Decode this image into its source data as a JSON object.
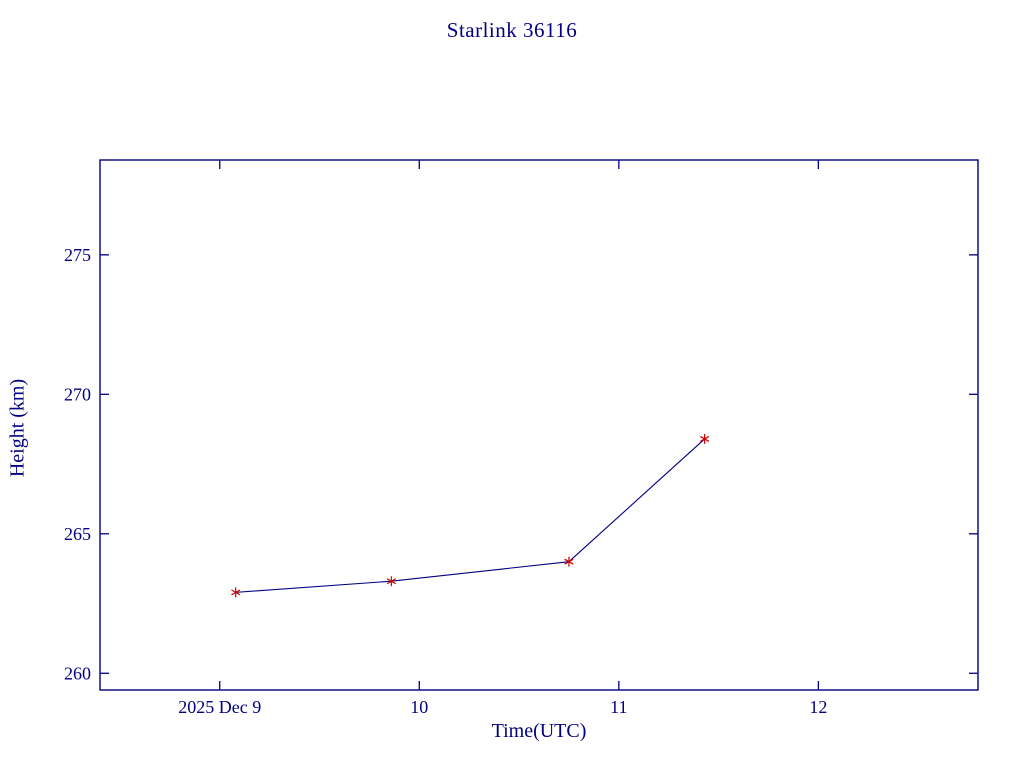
{
  "chart_data": {
    "type": "line",
    "title": "Starlink 36116",
    "xlabel": "Time(UTC)",
    "ylabel": "Height (km)",
    "x_unit": "day of December 2025 (UTC)",
    "x": [
      9.08,
      9.86,
      10.75,
      11.43
    ],
    "y": [
      262.9,
      263.3,
      264.0,
      268.4
    ],
    "xlim": [
      8.4,
      12.8
    ],
    "ylim": [
      259.4,
      278.4
    ],
    "x_ticks": [
      {
        "value": 9,
        "label": "2025 Dec 9"
      },
      {
        "value": 10,
        "label": "10"
      },
      {
        "value": 11,
        "label": "11"
      },
      {
        "value": 12,
        "label": "12"
      }
    ],
    "y_ticks": [
      {
        "value": 260,
        "label": "260"
      },
      {
        "value": 265,
        "label": "265"
      },
      {
        "value": 270,
        "label": "270"
      },
      {
        "value": 275,
        "label": "275"
      }
    ],
    "grid": false,
    "legend": null,
    "marker": "asterisk",
    "colors": {
      "axis": "#000080",
      "text": "#000080",
      "line": "#000080",
      "marker": "#cc0000",
      "background": "#ffffff"
    }
  }
}
